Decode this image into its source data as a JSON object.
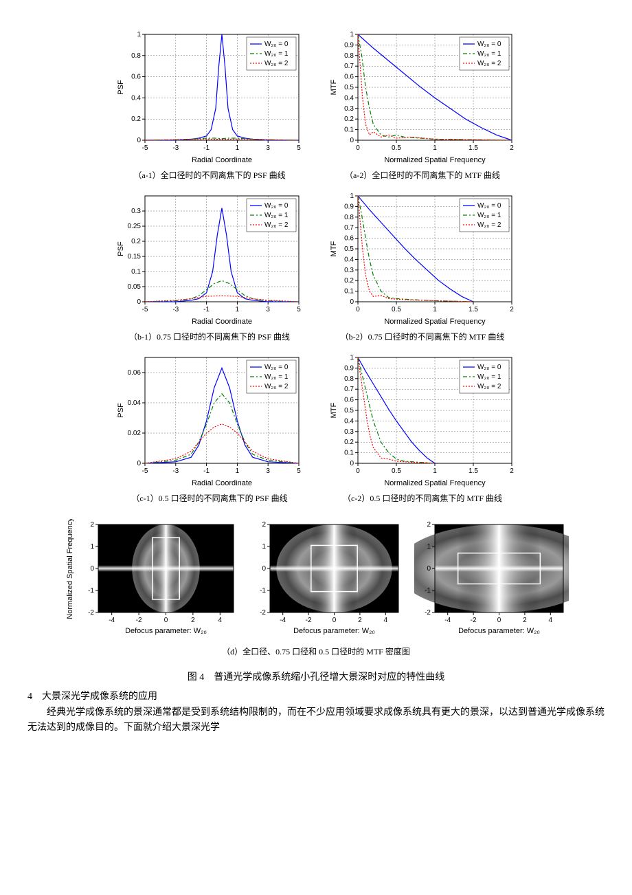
{
  "colors": {
    "w0": "#0000ff",
    "w1": "#008000",
    "w2": "#ff0000",
    "bg": "#ffffff",
    "grid": "#888888",
    "axis": "#000000"
  },
  "legend_labels": [
    "W₂₀ = 0",
    "W₂₀ = 1",
    "W₂₀ = 2"
  ],
  "legend_styles": [
    {
      "color": "#0000ff",
      "dash": "none"
    },
    {
      "color": "#008000",
      "dash": "6,3,2,3"
    },
    {
      "color": "#ff0000",
      "dash": "2,2"
    }
  ],
  "psf_charts": {
    "xlabel": "Radial Coordinate",
    "ylabel": "PSF",
    "xlim": [
      -5,
      5
    ],
    "xticks": [
      -5,
      -3,
      -1,
      1,
      3,
      5
    ],
    "a1": {
      "ylim": [
        0,
        1
      ],
      "yticks": [
        0,
        0.2,
        0.4,
        0.6,
        0.8,
        1
      ],
      "caption": "（a-1）全口径时的不同离焦下的 PSF 曲线",
      "series": {
        "w0": [
          [
            -5,
            0
          ],
          [
            -4,
            0
          ],
          [
            -3,
            0
          ],
          [
            -2,
            0.01
          ],
          [
            -1.5,
            0.02
          ],
          [
            -1,
            0.04
          ],
          [
            -0.7,
            0.1
          ],
          [
            -0.4,
            0.3
          ],
          [
            -0.2,
            0.7
          ],
          [
            0,
            1
          ],
          [
            0.2,
            0.7
          ],
          [
            0.4,
            0.3
          ],
          [
            0.7,
            0.1
          ],
          [
            1,
            0.04
          ],
          [
            1.5,
            0.02
          ],
          [
            2,
            0.01
          ],
          [
            3,
            0
          ],
          [
            4,
            0
          ],
          [
            5,
            0
          ]
        ],
        "w1": [
          [
            -5,
            0
          ],
          [
            -3,
            0.005
          ],
          [
            -2,
            0.01
          ],
          [
            -1.5,
            0.015
          ],
          [
            -1,
            0.02
          ],
          [
            -0.5,
            0.02
          ],
          [
            0,
            0.015
          ],
          [
            0.5,
            0.02
          ],
          [
            1,
            0.02
          ],
          [
            1.5,
            0.015
          ],
          [
            2,
            0.01
          ],
          [
            3,
            0.005
          ],
          [
            5,
            0
          ]
        ],
        "w2": [
          [
            -5,
            0
          ],
          [
            -3,
            0.005
          ],
          [
            -2,
            0.01
          ],
          [
            -1,
            0.012
          ],
          [
            0,
            0.008
          ],
          [
            1,
            0.012
          ],
          [
            2,
            0.01
          ],
          [
            3,
            0.005
          ],
          [
            5,
            0
          ]
        ]
      }
    },
    "b1": {
      "ylim": [
        0,
        0.35
      ],
      "yticks": [
        0,
        0.05,
        0.1,
        0.15,
        0.2,
        0.25,
        0.3
      ],
      "caption": "（b-1）0.75 口径时的不同离焦下的 PSF 曲线",
      "series": {
        "w0": [
          [
            -5,
            0
          ],
          [
            -3,
            0
          ],
          [
            -2,
            0.005
          ],
          [
            -1.5,
            0.01
          ],
          [
            -1,
            0.03
          ],
          [
            -0.6,
            0.1
          ],
          [
            -0.3,
            0.22
          ],
          [
            0,
            0.31
          ],
          [
            0.3,
            0.22
          ],
          [
            0.6,
            0.1
          ],
          [
            1,
            0.03
          ],
          [
            1.5,
            0.01
          ],
          [
            2,
            0.005
          ],
          [
            3,
            0
          ],
          [
            5,
            0
          ]
        ],
        "w1": [
          [
            -5,
            0
          ],
          [
            -3,
            0.003
          ],
          [
            -2,
            0.01
          ],
          [
            -1.5,
            0.02
          ],
          [
            -1,
            0.04
          ],
          [
            -0.5,
            0.06
          ],
          [
            0,
            0.07
          ],
          [
            0.5,
            0.06
          ],
          [
            1,
            0.04
          ],
          [
            1.5,
            0.02
          ],
          [
            2,
            0.01
          ],
          [
            3,
            0.003
          ],
          [
            5,
            0
          ]
        ],
        "w2": [
          [
            -5,
            0
          ],
          [
            -3,
            0.005
          ],
          [
            -2,
            0.01
          ],
          [
            -1,
            0.018
          ],
          [
            0,
            0.02
          ],
          [
            1,
            0.018
          ],
          [
            2,
            0.01
          ],
          [
            3,
            0.005
          ],
          [
            5,
            0
          ]
        ]
      }
    },
    "c1": {
      "ylim": [
        0,
        0.07
      ],
      "yticks": [
        0,
        0.02,
        0.04,
        0.06
      ],
      "caption": "（c-1）0.5 口径时的不同离焦下的 PSF 曲线",
      "series": {
        "w0": [
          [
            -5,
            0
          ],
          [
            -3,
            0.001
          ],
          [
            -2,
            0.004
          ],
          [
            -1.5,
            0.012
          ],
          [
            -1,
            0.028
          ],
          [
            -0.5,
            0.05
          ],
          [
            0,
            0.063
          ],
          [
            0.5,
            0.05
          ],
          [
            1,
            0.028
          ],
          [
            1.5,
            0.012
          ],
          [
            2,
            0.004
          ],
          [
            3,
            0.001
          ],
          [
            5,
            0
          ]
        ],
        "w1": [
          [
            -5,
            0
          ],
          [
            -3,
            0.002
          ],
          [
            -2,
            0.006
          ],
          [
            -1.5,
            0.014
          ],
          [
            -1,
            0.026
          ],
          [
            -0.5,
            0.04
          ],
          [
            0,
            0.046
          ],
          [
            0.5,
            0.04
          ],
          [
            1,
            0.026
          ],
          [
            1.5,
            0.014
          ],
          [
            2,
            0.006
          ],
          [
            3,
            0.002
          ],
          [
            5,
            0
          ]
        ],
        "w2": [
          [
            -5,
            0
          ],
          [
            -3,
            0.003
          ],
          [
            -2,
            0.008
          ],
          [
            -1.5,
            0.014
          ],
          [
            -1,
            0.02
          ],
          [
            -0.5,
            0.024
          ],
          [
            0,
            0.026
          ],
          [
            0.5,
            0.024
          ],
          [
            1,
            0.02
          ],
          [
            1.5,
            0.014
          ],
          [
            2,
            0.008
          ],
          [
            3,
            0.003
          ],
          [
            5,
            0
          ]
        ]
      }
    }
  },
  "mtf_charts": {
    "xlabel": "Normalized Spatial Frequency",
    "ylabel": "MTF",
    "xlim": [
      0,
      2
    ],
    "xticks": [
      0,
      0.5,
      1,
      1.5,
      2
    ],
    "ylim": [
      0,
      1
    ],
    "yticks": [
      0,
      0.1,
      0.2,
      0.3,
      0.4,
      0.5,
      0.6,
      0.7,
      0.8,
      0.9,
      1
    ],
    "a2": {
      "caption": "（a-2）全口径时的不同离焦下的 MTF 曲线",
      "series": {
        "w0": [
          [
            0,
            1
          ],
          [
            0.2,
            0.87
          ],
          [
            0.4,
            0.75
          ],
          [
            0.6,
            0.63
          ],
          [
            0.8,
            0.51
          ],
          [
            1,
            0.4
          ],
          [
            1.2,
            0.3
          ],
          [
            1.4,
            0.2
          ],
          [
            1.6,
            0.12
          ],
          [
            1.8,
            0.05
          ],
          [
            2,
            0
          ]
        ],
        "w1": [
          [
            0,
            1
          ],
          [
            0.05,
            0.8
          ],
          [
            0.1,
            0.5
          ],
          [
            0.15,
            0.3
          ],
          [
            0.2,
            0.15
          ],
          [
            0.3,
            0.05
          ],
          [
            0.4,
            0.03
          ],
          [
            0.5,
            0.05
          ],
          [
            0.6,
            0.03
          ],
          [
            0.8,
            0.02
          ],
          [
            1,
            0.01
          ],
          [
            2,
            0
          ]
        ],
        "w2": [
          [
            0,
            1
          ],
          [
            0.03,
            0.7
          ],
          [
            0.06,
            0.4
          ],
          [
            0.1,
            0.15
          ],
          [
            0.15,
            0.05
          ],
          [
            0.2,
            0.08
          ],
          [
            0.3,
            0.03
          ],
          [
            0.4,
            0.05
          ],
          [
            0.5,
            0.02
          ],
          [
            0.7,
            0.03
          ],
          [
            1,
            0.01
          ],
          [
            2,
            0
          ]
        ]
      }
    },
    "b2": {
      "caption": "（b-2）0.75 口径时的不同离焦下的 MTF 曲线",
      "series": {
        "w0": [
          [
            0,
            1
          ],
          [
            0.15,
            0.87
          ],
          [
            0.3,
            0.75
          ],
          [
            0.45,
            0.63
          ],
          [
            0.6,
            0.51
          ],
          [
            0.75,
            0.4
          ],
          [
            0.9,
            0.3
          ],
          [
            1.05,
            0.2
          ],
          [
            1.2,
            0.12
          ],
          [
            1.35,
            0.05
          ],
          [
            1.5,
            0
          ]
        ],
        "w1": [
          [
            0,
            1
          ],
          [
            0.05,
            0.82
          ],
          [
            0.1,
            0.6
          ],
          [
            0.15,
            0.4
          ],
          [
            0.2,
            0.25
          ],
          [
            0.3,
            0.1
          ],
          [
            0.4,
            0.04
          ],
          [
            0.5,
            0.03
          ],
          [
            0.7,
            0.02
          ],
          [
            1,
            0.01
          ],
          [
            1.5,
            0
          ]
        ],
        "w2": [
          [
            0,
            1
          ],
          [
            0.03,
            0.75
          ],
          [
            0.06,
            0.5
          ],
          [
            0.1,
            0.25
          ],
          [
            0.15,
            0.1
          ],
          [
            0.2,
            0.05
          ],
          [
            0.3,
            0.06
          ],
          [
            0.4,
            0.03
          ],
          [
            0.6,
            0.02
          ],
          [
            1,
            0.01
          ],
          [
            1.5,
            0
          ]
        ]
      }
    },
    "c2": {
      "caption": "（c-2）0.5 口径时的不同离焦下的 MTF 曲线",
      "series": {
        "w0": [
          [
            0,
            1
          ],
          [
            0.1,
            0.87
          ],
          [
            0.2,
            0.75
          ],
          [
            0.3,
            0.63
          ],
          [
            0.4,
            0.51
          ],
          [
            0.5,
            0.4
          ],
          [
            0.6,
            0.3
          ],
          [
            0.7,
            0.2
          ],
          [
            0.8,
            0.12
          ],
          [
            0.9,
            0.05
          ],
          [
            1,
            0
          ]
        ],
        "w1": [
          [
            0,
            1
          ],
          [
            0.05,
            0.85
          ],
          [
            0.1,
            0.7
          ],
          [
            0.15,
            0.55
          ],
          [
            0.2,
            0.4
          ],
          [
            0.3,
            0.2
          ],
          [
            0.4,
            0.1
          ],
          [
            0.5,
            0.04
          ],
          [
            0.6,
            0.02
          ],
          [
            0.8,
            0.01
          ],
          [
            1,
            0
          ]
        ],
        "w2": [
          [
            0,
            1
          ],
          [
            0.04,
            0.8
          ],
          [
            0.08,
            0.6
          ],
          [
            0.12,
            0.4
          ],
          [
            0.16,
            0.25
          ],
          [
            0.2,
            0.15
          ],
          [
            0.3,
            0.05
          ],
          [
            0.4,
            0.04
          ],
          [
            0.5,
            0.02
          ],
          [
            0.7,
            0.01
          ],
          [
            1,
            0
          ]
        ]
      }
    }
  },
  "heatmaps": {
    "caption": "（d）全口径、0.75 口径和 0.5 口径时的 MTF 密度图",
    "ylabel": "Normalized Spatial Frequency",
    "xlabel": "Defocus parameter: W₂₀",
    "xlim": [
      -5,
      5
    ],
    "ylim": [
      -2,
      2
    ],
    "xticks": [
      -4,
      -2,
      0,
      2,
      4
    ],
    "yticks": [
      -2,
      -1,
      0,
      1,
      2
    ],
    "panels": [
      {
        "aperture": 1.0,
        "half_width": 1.0
      },
      {
        "aperture": 0.75,
        "half_width": 1.8
      },
      {
        "aperture": 0.5,
        "half_width": 3.2
      }
    ]
  },
  "figure_caption": "图 4　普通光学成像系统缩小孔径增大景深时对应的特性曲线",
  "section_heading": "4　大景深光学成像系统的应用",
  "body_text": "经典光学成像系统的景深通常都是受到系统结构限制的，而在不少应用领域要求成像系统具有更大的景深，以达到普通光学成像系统无法达到的成像目的。下面就介绍大景深光学"
}
